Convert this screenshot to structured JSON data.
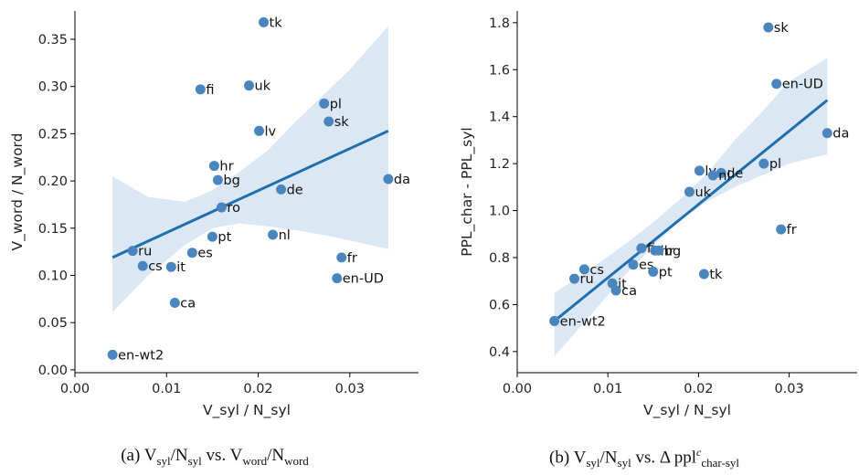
{
  "colors": {
    "point": "#4a86bd",
    "line": "#1f6fae",
    "band": "#dbe7f3"
  },
  "captions": {
    "a": {
      "label": "(a)",
      "v": "V",
      "syl": "syl",
      "slash": "/",
      "n": "N",
      "syl2": "syl",
      "vs": "vs.",
      "v2": "V",
      "word": "word",
      "slash2": "/",
      "n2": "N",
      "word2": "word"
    },
    "b": {
      "label": "(b)",
      "v": "V",
      "syl": "syl",
      "slash": "/",
      "n": "N",
      "syl2": "syl",
      "vs": "vs.",
      "delta": "Δ",
      "ppl": "ppl",
      "c": "c",
      "sub": "char-syl"
    }
  },
  "chart_data": [
    {
      "type": "scatter",
      "xlabel": "V_syl / N_syl",
      "ylabel": "V_word / N_word",
      "xlim": [
        0.0,
        0.0375
      ],
      "ylim": [
        -0.003,
        0.38
      ],
      "xticks": [
        0.0,
        0.01,
        0.02,
        0.03
      ],
      "xtick_labels": [
        "0.00",
        "0.01",
        "0.02",
        "0.03"
      ],
      "yticks": [
        0.0,
        0.05,
        0.1,
        0.15,
        0.2,
        0.25,
        0.3,
        0.35
      ],
      "ytick_labels": [
        "0.00",
        "0.05",
        "0.10",
        "0.15",
        "0.20",
        "0.25",
        "0.30",
        "0.35"
      ],
      "points": [
        {
          "label": "tk",
          "x": 0.0206,
          "y": 0.368
        },
        {
          "label": "fi",
          "x": 0.0137,
          "y": 0.297
        },
        {
          "label": "uk",
          "x": 0.019,
          "y": 0.301
        },
        {
          "label": "pl",
          "x": 0.0272,
          "y": 0.282
        },
        {
          "label": "sk",
          "x": 0.0277,
          "y": 0.263
        },
        {
          "label": "lv",
          "x": 0.0201,
          "y": 0.253
        },
        {
          "label": "hr",
          "x": 0.0152,
          "y": 0.216
        },
        {
          "label": "bg",
          "x": 0.0156,
          "y": 0.201
        },
        {
          "label": "de",
          "x": 0.0225,
          "y": 0.191
        },
        {
          "label": "da",
          "x": 0.0342,
          "y": 0.202
        },
        {
          "label": "ro",
          "x": 0.016,
          "y": 0.172
        },
        {
          "label": "pt",
          "x": 0.015,
          "y": 0.141
        },
        {
          "label": "nl",
          "x": 0.0216,
          "y": 0.143
        },
        {
          "label": "ru",
          "x": 0.0063,
          "y": 0.126
        },
        {
          "label": "es",
          "x": 0.0128,
          "y": 0.124
        },
        {
          "label": "cs",
          "x": 0.0074,
          "y": 0.11
        },
        {
          "label": "it",
          "x": 0.0105,
          "y": 0.109
        },
        {
          "label": "fr",
          "x": 0.0291,
          "y": 0.119
        },
        {
          "label": "en-UD",
          "x": 0.0286,
          "y": 0.097
        },
        {
          "label": "ca",
          "x": 0.0109,
          "y": 0.071
        },
        {
          "label": "en-wt2",
          "x": 0.0041,
          "y": 0.016
        }
      ],
      "regression": {
        "x": [
          0.0041,
          0.0342
        ],
        "y": [
          0.119,
          0.253
        ]
      },
      "band": {
        "x": [
          0.0041,
          0.008,
          0.012,
          0.015,
          0.018,
          0.021,
          0.024,
          0.027,
          0.03,
          0.0342
        ],
        "lower": [
          0.061,
          0.1,
          0.132,
          0.15,
          0.155,
          0.152,
          0.148,
          0.143,
          0.137,
          0.128
        ],
        "upper": [
          0.205,
          0.183,
          0.178,
          0.19,
          0.21,
          0.232,
          0.262,
          0.29,
          0.318,
          0.364
        ]
      }
    },
    {
      "type": "scatter",
      "xlabel": "V_syl / N_syl",
      "ylabel": "PPL_char - PPL_syl",
      "xlim": [
        0.0,
        0.0375
      ],
      "ylim": [
        0.31,
        1.85
      ],
      "xticks": [
        0.0,
        0.01,
        0.02,
        0.03
      ],
      "xtick_labels": [
        "0.00",
        "0.01",
        "0.02",
        "0.03"
      ],
      "yticks": [
        0.4,
        0.6,
        0.8,
        1.0,
        1.2,
        1.4,
        1.6,
        1.8
      ],
      "ytick_labels": [
        "0.4",
        "0.6",
        "0.8",
        "1.0",
        "1.2",
        "1.4",
        "1.6",
        "1.8"
      ],
      "points": [
        {
          "label": "sk",
          "x": 0.0277,
          "y": 1.78
        },
        {
          "label": "en-UD",
          "x": 0.0286,
          "y": 1.54
        },
        {
          "label": "da",
          "x": 0.0342,
          "y": 1.33
        },
        {
          "label": "pl",
          "x": 0.0272,
          "y": 1.2
        },
        {
          "label": "lv",
          "x": 0.0201,
          "y": 1.17
        },
        {
          "label": "de",
          "x": 0.0225,
          "y": 1.16
        },
        {
          "label": "nl",
          "x": 0.0216,
          "y": 1.15
        },
        {
          "label": "uk",
          "x": 0.019,
          "y": 1.08
        },
        {
          "label": "fr",
          "x": 0.0291,
          "y": 0.92
        },
        {
          "label": "fi",
          "x": 0.0137,
          "y": 0.84
        },
        {
          "label": "hr",
          "x": 0.0152,
          "y": 0.83
        },
        {
          "label": "bg",
          "x": 0.0156,
          "y": 0.83
        },
        {
          "label": "cs",
          "x": 0.0074,
          "y": 0.75
        },
        {
          "label": "es",
          "x": 0.0128,
          "y": 0.77
        },
        {
          "label": "pt",
          "x": 0.015,
          "y": 0.74
        },
        {
          "label": "tk",
          "x": 0.0206,
          "y": 0.73
        },
        {
          "label": "ru",
          "x": 0.0063,
          "y": 0.71
        },
        {
          "label": "it",
          "x": 0.0105,
          "y": 0.69
        },
        {
          "label": "ca",
          "x": 0.0109,
          "y": 0.66
        },
        {
          "label": "en-wt2",
          "x": 0.0041,
          "y": 0.53
        }
      ],
      "regression": {
        "x": [
          0.0041,
          0.0342
        ],
        "y": [
          0.53,
          1.47
        ]
      },
      "band": {
        "x": [
          0.0041,
          0.008,
          0.012,
          0.015,
          0.018,
          0.021,
          0.024,
          0.027,
          0.03,
          0.0342
        ],
        "lower": [
          0.38,
          0.55,
          0.73,
          0.85,
          0.96,
          1.04,
          1.1,
          1.15,
          1.2,
          1.24
        ],
        "upper": [
          0.65,
          0.75,
          0.86,
          0.95,
          1.05,
          1.16,
          1.3,
          1.42,
          1.55,
          1.65
        ]
      }
    }
  ]
}
